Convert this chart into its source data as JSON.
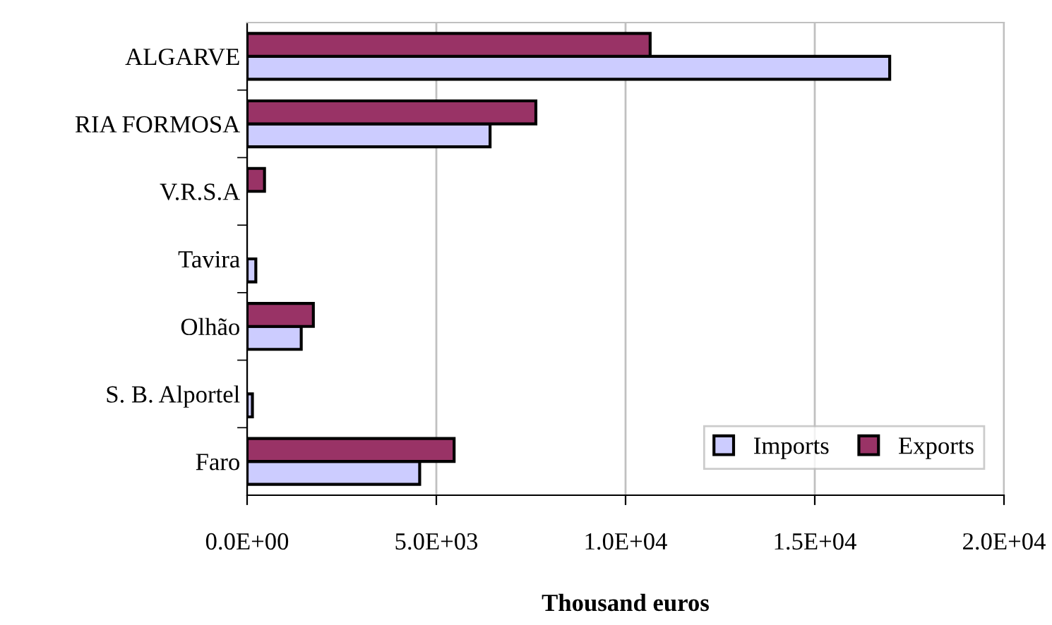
{
  "chart_data": {
    "type": "bar",
    "orientation": "horizontal",
    "xlabel": "Thousand euros",
    "categories": [
      "ALGARVE",
      "RIA FORMOSA",
      "V.R.S.A",
      "Tavira",
      "Olhão",
      "S. B. Alportel",
      "Faro"
    ],
    "series": [
      {
        "name": "Imports",
        "color": "#ccccff",
        "values": [
          16980,
          6420,
          null,
          230,
          1430,
          140,
          4560
        ]
      },
      {
        "name": "Exports",
        "color": "#993366",
        "values": [
          10650,
          7630,
          460,
          null,
          1750,
          null,
          5470
        ]
      }
    ],
    "xlim": [
      0,
      20000
    ],
    "xticks": [
      {
        "value": 0,
        "label": "0.0E+00"
      },
      {
        "value": 5000,
        "label": "5.0E+03"
      },
      {
        "value": 10000,
        "label": "1.0E+04"
      },
      {
        "value": 15000,
        "label": "1.5E+04"
      },
      {
        "value": 20000,
        "label": "2.0E+04"
      }
    ],
    "grid": "x",
    "legend": "bottom right"
  }
}
